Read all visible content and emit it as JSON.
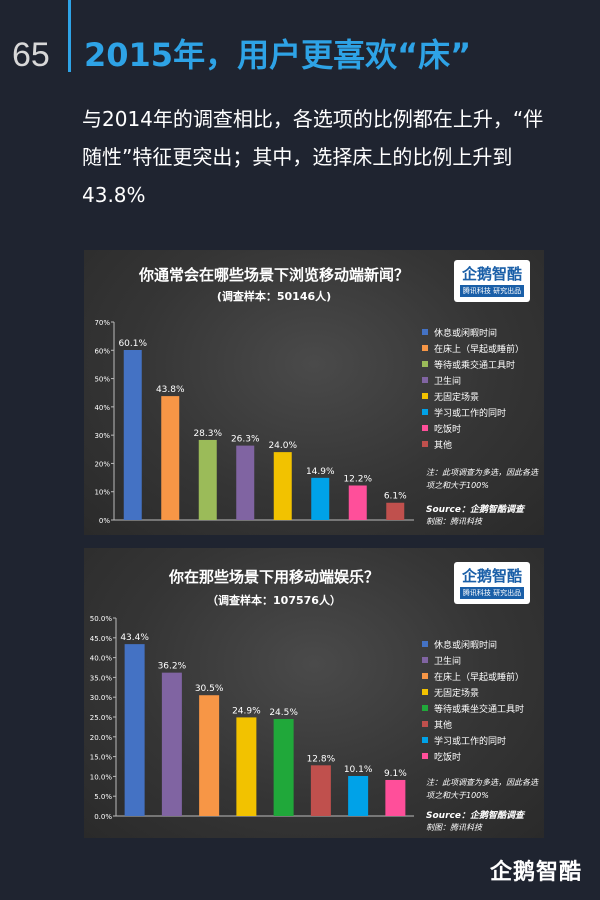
{
  "page_number": "65",
  "main_title": "2015年，用户更喜欢“床”",
  "intro_text": "与2014年的调查相比，各选项的比例都在上升，“伴随性”特征更突出；其中，选择床上的比例上升到43.8%",
  "logo_text": "企鹅智酷",
  "logo_tag": "腾讯科技 研究出品",
  "footer_logo": "企鹅智酷",
  "chart_data": [
    {
      "type": "bar",
      "title": "你通常会在哪些场景下浏览移动端新闻？",
      "subtitle": "(调查样本：50146人)",
      "categories": [
        "休息或闲暇时间",
        "在床上（早起或睡前）",
        "等待或乘交通工具时",
        "卫生间",
        "无固定场景",
        "学习或工作的同时",
        "吃饭时",
        "其他"
      ],
      "values": [
        60.1,
        43.8,
        28.3,
        26.3,
        24.0,
        14.9,
        12.2,
        6.1
      ],
      "value_labels": [
        "60.1%",
        "43.8%",
        "28.3%",
        "26.3%",
        "24.0%",
        "14.9%",
        "12.2%",
        "6.1%"
      ],
      "colors": [
        "#4472c4",
        "#f79646",
        "#9bbb59",
        "#8064a2",
        "#f2c200",
        "#00a2e8",
        "#ff4f9a",
        "#c0504d"
      ],
      "ylim": [
        0,
        70
      ],
      "yticks": [
        "0%",
        "10%",
        "20%",
        "30%",
        "40%",
        "50%",
        "60%",
        "70%"
      ],
      "ytick_values": [
        0,
        10,
        20,
        30,
        40,
        50,
        60,
        70
      ],
      "legend_position": "right",
      "grid": false,
      "note": "注：此项调查为多选，因此各选项之和大于100%",
      "source": "Source：企鹅智酷调查",
      "made_by": "制图：腾讯科技"
    },
    {
      "type": "bar",
      "title": "你在那些场景下用移动端娱乐？",
      "subtitle": "（调查样本：107576人）",
      "categories": [
        "休息或闲暇时间",
        "卫生间",
        "在床上（早起或睡前）",
        "无固定场景",
        "等待或乘坐交通工具时",
        "其他",
        "学习或工作的同时",
        "吃饭时"
      ],
      "values": [
        43.4,
        36.2,
        30.5,
        24.9,
        24.5,
        12.8,
        10.1,
        9.1
      ],
      "value_labels": [
        "43.4%",
        "36.2%",
        "30.5%",
        "24.9%",
        "24.5%",
        "12.8%",
        "10.1%",
        "9.1%"
      ],
      "colors": [
        "#4472c4",
        "#8064a2",
        "#f79646",
        "#f2c200",
        "#20a83a",
        "#c0504d",
        "#00a2e8",
        "#ff4f9a"
      ],
      "ylim": [
        0,
        50
      ],
      "yticks": [
        "0.0%",
        "5.0%",
        "10.0%",
        "15.0%",
        "20.0%",
        "25.0%",
        "30.0%",
        "35.0%",
        "40.0%",
        "45.0%",
        "50.0%"
      ],
      "ytick_values": [
        0,
        5,
        10,
        15,
        20,
        25,
        30,
        35,
        40,
        45,
        50
      ],
      "legend_position": "right",
      "grid": false,
      "note": "注：此项调查为多选，因此各选项之和大于100%",
      "source": "Source：企鹅智酷调查",
      "made_by": "制图：腾讯科技"
    }
  ]
}
